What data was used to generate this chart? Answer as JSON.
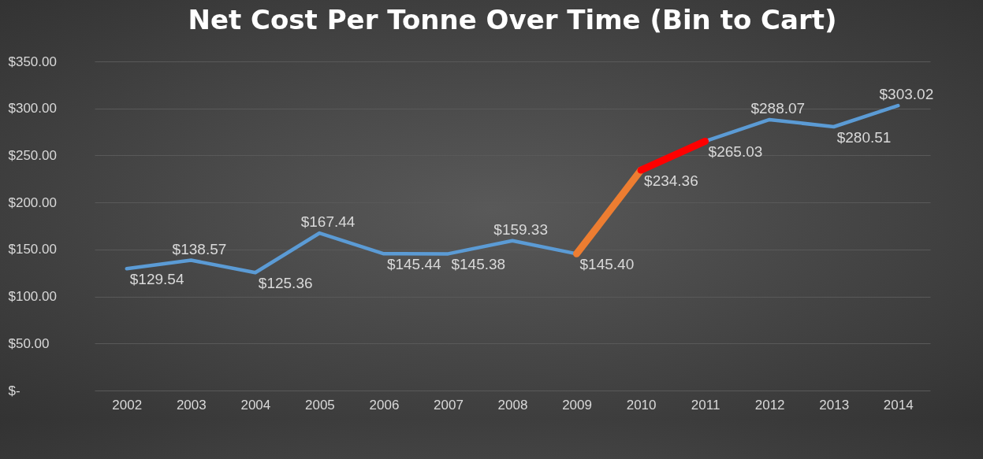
{
  "chart_data": {
    "type": "line",
    "title": "Net Cost Per Tonne Over Time (Bin to Cart)",
    "categories": [
      "2002",
      "2003",
      "2004",
      "2005",
      "2006",
      "2007",
      "2008",
      "2009",
      "2010",
      "2011",
      "2012",
      "2013",
      "2014"
    ],
    "series": [
      {
        "color": "#5b9bd5",
        "values": [
          129.54,
          138.57,
          125.36,
          167.44,
          145.44,
          145.38,
          159.33,
          145.4,
          null,
          265.03,
          288.07,
          280.51,
          303.02
        ],
        "value_labels": [
          "$129.54",
          "$138.57",
          "$125.36",
          "$167.44",
          "$145.44",
          "$145.38",
          "$159.33",
          "$145.40",
          null,
          "$265.03",
          "$288.07",
          "$280.51",
          "$303.02"
        ]
      },
      {
        "color": "#ed7d31",
        "values": [
          null,
          null,
          null,
          null,
          null,
          null,
          null,
          145.4,
          234.36,
          null,
          null,
          null,
          null
        ]
      },
      {
        "color": "#ff0000",
        "values": [
          null,
          null,
          null,
          null,
          null,
          null,
          null,
          null,
          234.36,
          265.03,
          null,
          null,
          null
        ],
        "value_labels": [
          null,
          null,
          null,
          null,
          null,
          null,
          null,
          null,
          "$234.36",
          null,
          null,
          null,
          null
        ]
      }
    ],
    "ylim": [
      0,
      350
    ],
    "yticks": [
      {
        "value": 0,
        "label": "$-"
      },
      {
        "value": 50,
        "label": "$50.00"
      },
      {
        "value": 100,
        "label": "$100.00"
      },
      {
        "value": 150,
        "label": "$150.00"
      },
      {
        "value": 200,
        "label": "$200.00"
      },
      {
        "value": 250,
        "label": "$250.00"
      },
      {
        "value": 300,
        "label": "$300.00"
      },
      {
        "value": 350,
        "label": "$350.00"
      }
    ],
    "grid": "y"
  }
}
